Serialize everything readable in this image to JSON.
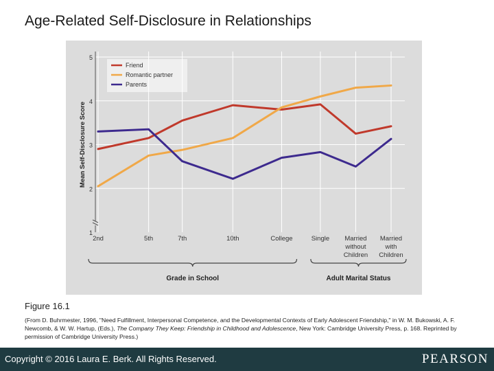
{
  "slide": {
    "title": "Age-Related Self-Disclosure in Relationships",
    "figure_label": "Figure 16.1",
    "caption_parts": {
      "part1": "(From D. Buhrmester, 1996, \"Need Fulfillment, Interpersonal Competence, and the Developmental Contexts of Early Adolescent Friendship,\" in W. M. Bukowski, A. F. Newcomb, & W. W. Hartup, (Eds.), ",
      "italic": "The Company They Keep: Friendship in Childhood and Adolescence",
      "part2": ", New York: Cambridge University Press, p. 168. Reprinted by permission of Cambridge University Press.)"
    },
    "copyright": "Copyright © 2016 Laura E. Berk. All Rights Reserved.",
    "brand": "PEARSON"
  },
  "chart_data": {
    "type": "line",
    "ylabel": "Mean Self-Disclosure Score",
    "ylim": [
      1,
      5
    ],
    "yticks": [
      1,
      2,
      3,
      4,
      5
    ],
    "grid": true,
    "legend_position": "top-left",
    "categories": [
      "2nd",
      "5th",
      "7th",
      "10th",
      "College",
      "Single",
      "Married without Children",
      "Married with Children"
    ],
    "category_positions": [
      2,
      5,
      7,
      10,
      12.9,
      15.2,
      17.3,
      19.4
    ],
    "groups": [
      {
        "label": "Grade in School",
        "categories": [
          "2nd",
          "5th",
          "7th",
          "10th",
          "College"
        ]
      },
      {
        "label": "Adult Marital Status",
        "categories": [
          "Single",
          "Married without Children",
          "Married with Children"
        ]
      }
    ],
    "series": [
      {
        "name": "Friend",
        "color": "#c0392b",
        "values": [
          2.9,
          3.15,
          3.55,
          3.9,
          3.8,
          3.92,
          3.25,
          3.42
        ]
      },
      {
        "name": "Romantic partner",
        "color": "#f0a848",
        "values": [
          2.05,
          2.75,
          2.88,
          3.15,
          3.85,
          4.1,
          4.3,
          4.35
        ]
      },
      {
        "name": "Parents",
        "color": "#3d2a8e",
        "values": [
          3.3,
          3.35,
          2.62,
          2.22,
          2.7,
          2.83,
          2.5,
          3.13
        ]
      }
    ]
  }
}
